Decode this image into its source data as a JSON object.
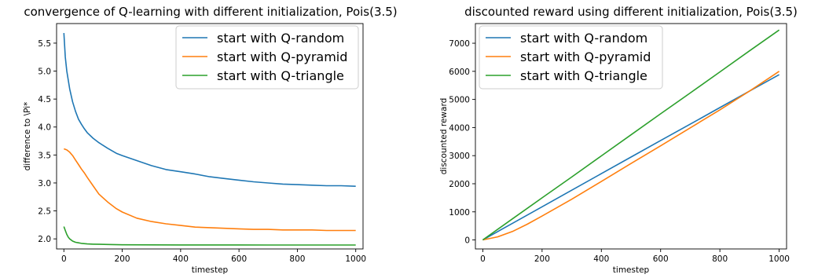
{
  "chart_data": [
    {
      "type": "line",
      "title": "convergence of Q-learning with different initialization, Pois(3.5)",
      "xlabel": "timestep",
      "ylabel": "difference to \\Pi*",
      "xlim": [
        -25,
        1025
      ],
      "ylim": [
        1.82,
        5.85
      ],
      "xticks": [
        0,
        200,
        400,
        600,
        800,
        1000
      ],
      "yticks": [
        2.0,
        2.5,
        3.0,
        3.5,
        4.0,
        4.5,
        5.0,
        5.5
      ],
      "ytick_labels": [
        "2.0",
        "2.5",
        "3.0",
        "3.5",
        "4.0",
        "4.5",
        "5.0",
        "5.5"
      ],
      "legend_position": "top-right",
      "grid": false,
      "series": [
        {
          "name": "start with Q-random",
          "color": "#1f77b4",
          "x": [
            0,
            5,
            10,
            20,
            30,
            40,
            50,
            60,
            70,
            80,
            100,
            120,
            150,
            180,
            200,
            250,
            300,
            350,
            400,
            450,
            500,
            550,
            600,
            650,
            700,
            750,
            800,
            850,
            900,
            950,
            1000
          ],
          "y": [
            5.68,
            5.25,
            5.0,
            4.68,
            4.45,
            4.28,
            4.14,
            4.05,
            3.97,
            3.9,
            3.8,
            3.72,
            3.62,
            3.53,
            3.49,
            3.4,
            3.31,
            3.24,
            3.2,
            3.16,
            3.11,
            3.08,
            3.05,
            3.02,
            3.0,
            2.98,
            2.97,
            2.96,
            2.95,
            2.95,
            2.94
          ]
        },
        {
          "name": "start with Q-pyramid",
          "color": "#ff7f0e",
          "x": [
            0,
            10,
            20,
            30,
            40,
            50,
            60,
            70,
            80,
            100,
            120,
            150,
            180,
            200,
            250,
            300,
            350,
            400,
            450,
            500,
            550,
            600,
            650,
            700,
            750,
            800,
            850,
            900,
            950,
            1000
          ],
          "y": [
            3.61,
            3.59,
            3.55,
            3.49,
            3.41,
            3.33,
            3.25,
            3.18,
            3.1,
            2.95,
            2.8,
            2.66,
            2.54,
            2.48,
            2.37,
            2.31,
            2.27,
            2.24,
            2.21,
            2.2,
            2.19,
            2.18,
            2.17,
            2.17,
            2.16,
            2.16,
            2.16,
            2.15,
            2.15,
            2.15
          ]
        },
        {
          "name": "start with Q-triangle",
          "color": "#2ca02c",
          "x": [
            0,
            5,
            10,
            15,
            20,
            30,
            40,
            50,
            60,
            80,
            100,
            150,
            200,
            300,
            400,
            500,
            600,
            700,
            800,
            900,
            1000
          ],
          "y": [
            2.22,
            2.15,
            2.08,
            2.03,
            2.0,
            1.96,
            1.94,
            1.93,
            1.92,
            1.91,
            1.905,
            1.9,
            1.895,
            1.893,
            1.892,
            1.891,
            1.891,
            1.89,
            1.89,
            1.89,
            1.89
          ]
        }
      ]
    },
    {
      "type": "line",
      "title": "discounted reward using different initialization, Pois(3.5)",
      "xlabel": "timestep",
      "ylabel": "discounted reward",
      "xlim": [
        -25,
        1025
      ],
      "ylim": [
        -320,
        7700
      ],
      "xticks": [
        0,
        200,
        400,
        600,
        800,
        1000
      ],
      "yticks": [
        0,
        1000,
        2000,
        3000,
        4000,
        5000,
        6000,
        7000
      ],
      "ytick_labels": [
        "0",
        "1000",
        "2000",
        "3000",
        "4000",
        "5000",
        "6000",
        "7000"
      ],
      "legend_position": "top-left",
      "grid": false,
      "series": [
        {
          "name": "start with Q-random",
          "color": "#1f77b4",
          "x": [
            0,
            100,
            200,
            300,
            400,
            500,
            600,
            700,
            800,
            900,
            1000
          ],
          "y": [
            0,
            590,
            1180,
            1770,
            2360,
            2950,
            3540,
            4120,
            4710,
            5300,
            5880
          ]
        },
        {
          "name": "start with Q-pyramid",
          "color": "#ff7f0e",
          "x": [
            0,
            50,
            100,
            150,
            200,
            300,
            400,
            500,
            600,
            700,
            800,
            900,
            1000
          ],
          "y": [
            0,
            110,
            300,
            560,
            850,
            1450,
            2080,
            2720,
            3350,
            3990,
            4630,
            5300,
            6000
          ]
        },
        {
          "name": "start with Q-triangle",
          "color": "#2ca02c",
          "x": [
            0,
            100,
            200,
            300,
            400,
            500,
            600,
            700,
            800,
            900,
            1000
          ],
          "y": [
            0,
            750,
            1500,
            2240,
            2990,
            3740,
            4490,
            5230,
            5980,
            6730,
            7470
          ]
        }
      ]
    }
  ]
}
